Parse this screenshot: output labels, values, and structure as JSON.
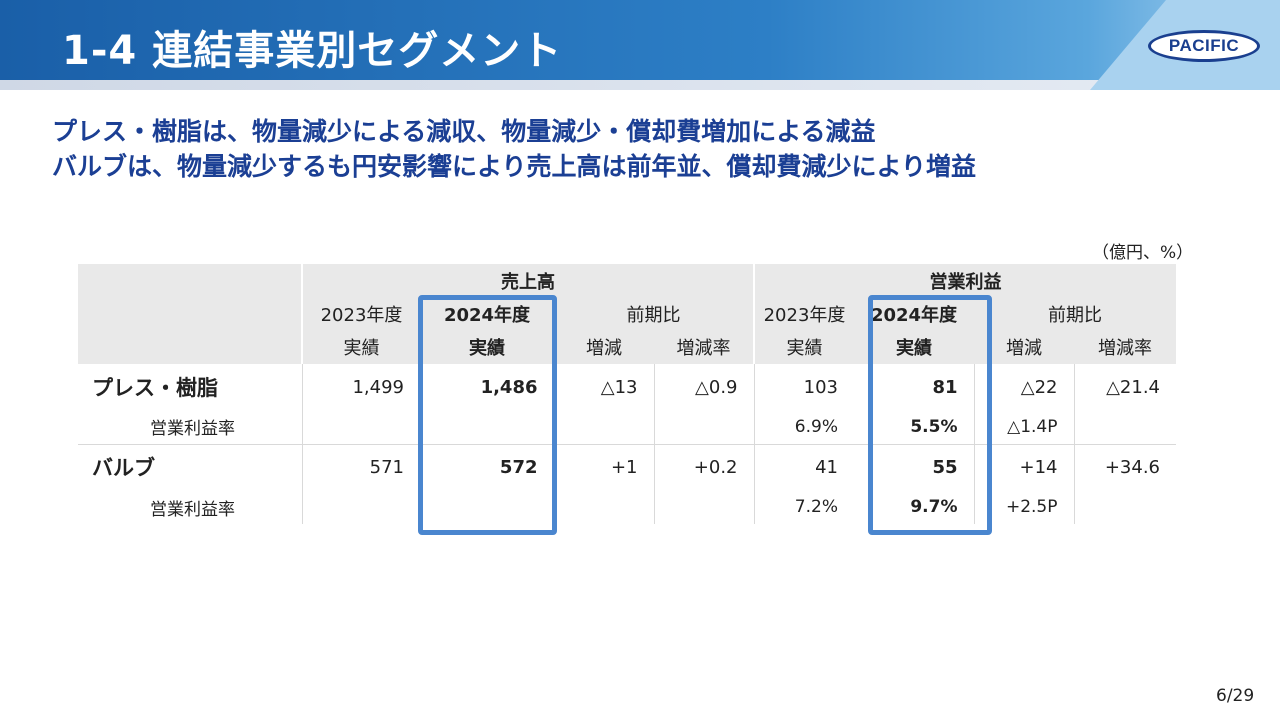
{
  "header": {
    "title": "1-4 連結事業別セグメント",
    "logo_text": "PACIFIC"
  },
  "headline": {
    "line1": "プレス・樹脂は、物量減少による減収、物量減少・償却費増加による減益",
    "line2": "バルブは、物量減少するも円安影響により売上高は前年並、償却費減少により増益"
  },
  "table": {
    "unit": "（億円、%）",
    "groups": {
      "sales": "売上高",
      "op": "営業利益"
    },
    "subheaders": {
      "fy2023": "2023年度",
      "fy2024": "2024年度",
      "yoy": "前期比",
      "actual": "実績",
      "change": "増減",
      "change_rate": "増減率"
    },
    "rows": [
      {
        "name": "プレス・樹脂",
        "sales_2023": "1,499",
        "sales_2024": "1,486",
        "sales_change": "△13",
        "sales_rate": "△0.9",
        "op_2023": "103",
        "op_2024": "81",
        "op_change": "△22",
        "op_rate": "△21.4",
        "margin_label": "営業利益率",
        "margin_2023": "6.9%",
        "margin_2024": "5.5%",
        "margin_change": "△1.4P"
      },
      {
        "name": "バルブ",
        "sales_2023": "571",
        "sales_2024": "572",
        "sales_change": "+1",
        "sales_rate": "+0.2",
        "op_2023": "41",
        "op_2024": "55",
        "op_change": "+14",
        "op_rate": "+34.6",
        "margin_label": "営業利益率",
        "margin_2023": "7.2%",
        "margin_2024": "9.7%",
        "margin_change": "+2.5P"
      }
    ]
  },
  "footer": {
    "page": "6/29"
  },
  "colors": {
    "header_blue": "#1a5fa8",
    "headline_navy": "#1b3f94",
    "highlight_blue": "#4a86cf"
  }
}
